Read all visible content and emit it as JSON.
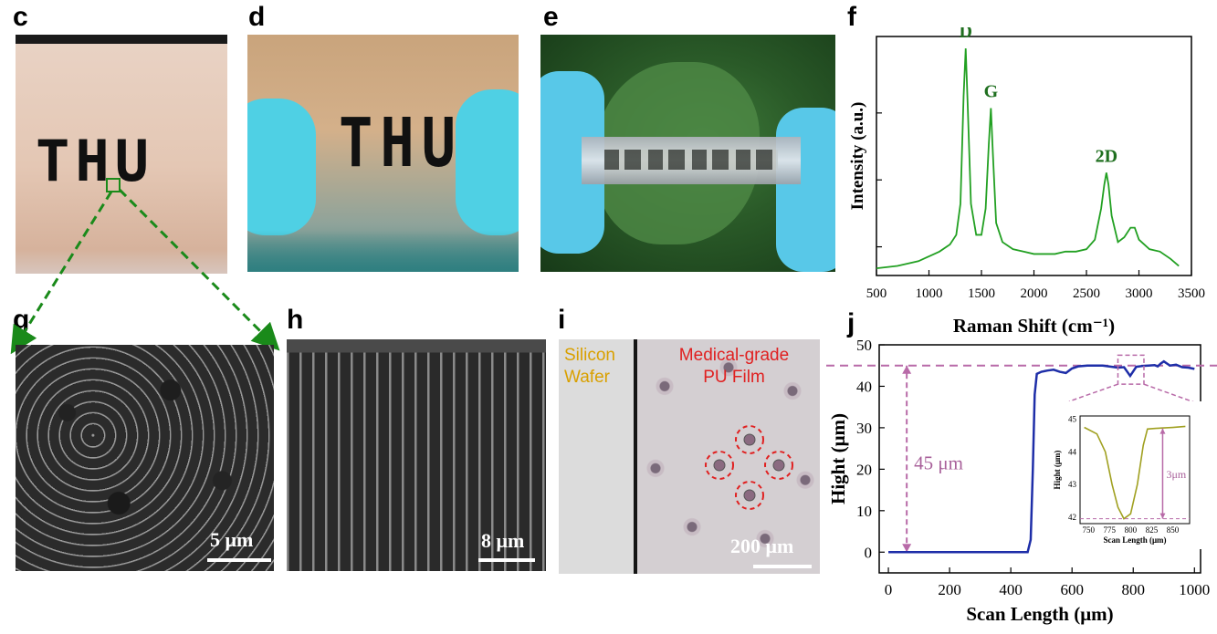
{
  "panels": {
    "c": "c",
    "d": "d",
    "e": "e",
    "f": "f",
    "g": "g",
    "h": "h",
    "i": "i",
    "j": "j"
  },
  "photos": {
    "c_text": "THU",
    "d_text": "THU"
  },
  "scale_bars": {
    "g": "5 μm",
    "h": "8 μm",
    "i": "200 μm"
  },
  "micrograph_i": {
    "left_label_line1": "Silicon",
    "left_label_line2": "Wafer",
    "right_label_line1": "Medical-grade",
    "right_label_line2": "PU Film"
  },
  "chart_data": [
    {
      "panel": "f",
      "type": "line",
      "xlabel": "Raman Shift (cm⁻¹)",
      "ylabel": "Intensity (a.u.)",
      "xlim": [
        500,
        3500
      ],
      "x_ticks": [
        500,
        1000,
        1500,
        2000,
        2500,
        3000,
        3500
      ],
      "y_ticks_labeled": false,
      "color": "#22a022",
      "peaks": [
        {
          "label": "D",
          "x": 1350
        },
        {
          "label": "G",
          "x": 1590
        },
        {
          "label": "2D",
          "x": 2690
        }
      ],
      "series": [
        {
          "x": [
            500,
            700,
            900,
            1000,
            1100,
            1200,
            1260,
            1300,
            1330,
            1350,
            1370,
            1400,
            1450,
            1500,
            1540,
            1570,
            1590,
            1610,
            1640,
            1700,
            1800,
            1900,
            2000,
            2100,
            2200,
            2300,
            2400,
            2500,
            2580,
            2640,
            2670,
            2690,
            2710,
            2740,
            2800,
            2860,
            2920,
            2960,
            3000,
            3100,
            3200,
            3300,
            3380
          ],
          "y": [
            0.03,
            0.04,
            0.06,
            0.08,
            0.1,
            0.13,
            0.17,
            0.3,
            0.75,
            0.95,
            0.7,
            0.3,
            0.17,
            0.17,
            0.28,
            0.55,
            0.7,
            0.5,
            0.22,
            0.14,
            0.11,
            0.1,
            0.09,
            0.09,
            0.09,
            0.1,
            0.1,
            0.11,
            0.15,
            0.28,
            0.38,
            0.43,
            0.38,
            0.25,
            0.14,
            0.16,
            0.2,
            0.2,
            0.15,
            0.11,
            0.1,
            0.07,
            0.04
          ]
        }
      ]
    },
    {
      "panel": "j",
      "type": "line",
      "xlabel": "Scan Length (μm)",
      "ylabel": "Hight (μm)",
      "xlim": [
        -30,
        1020
      ],
      "ylim": [
        -5,
        50
      ],
      "x_ticks": [
        0,
        200,
        400,
        600,
        800,
        1000
      ],
      "y_ticks": [
        0,
        10,
        20,
        30,
        40,
        50
      ],
      "reference_line": 45,
      "annotation": "45 μm",
      "color": "#1e2ea8",
      "series": [
        {
          "x": [
            0,
            100,
            200,
            300,
            400,
            455,
            465,
            472,
            478,
            485,
            500,
            520,
            540,
            560,
            580,
            600,
            620,
            650,
            700,
            750,
            770,
            790,
            810,
            830,
            850,
            870,
            880,
            890,
            900,
            920,
            940,
            960,
            980,
            1000
          ],
          "y": [
            0,
            0,
            0,
            0,
            0,
            0,
            3,
            20,
            38,
            43,
            43.5,
            43.8,
            44,
            43.5,
            43.2,
            44.3,
            44.8,
            45,
            45,
            44.5,
            44.6,
            42.5,
            44.7,
            44.9,
            45,
            45.1,
            44.8,
            45.5,
            46,
            45,
            45.2,
            44.6,
            44.5,
            44.2
          ]
        }
      ],
      "inset": {
        "type": "line",
        "xlabel": "Scan Length (μm)",
        "ylabel": "Hight (μm)",
        "xlim": [
          740,
          870
        ],
        "ylim": [
          41.8,
          45.1
        ],
        "x_ticks": [
          750,
          775,
          800,
          825,
          850
        ],
        "y_ticks": [
          42,
          43,
          44,
          45
        ],
        "annotation": "3μm",
        "color": "#a0a020",
        "series": [
          {
            "x": [
              745,
              760,
              770,
              778,
              785,
              792,
              800,
              808,
              815,
              820,
              830,
              850,
              865
            ],
            "y": [
              44.75,
              44.55,
              44.0,
              43.0,
              42.3,
              41.95,
              42.1,
              43.0,
              44.2,
              44.7,
              44.72,
              44.75,
              44.78
            ]
          }
        ]
      }
    }
  ]
}
